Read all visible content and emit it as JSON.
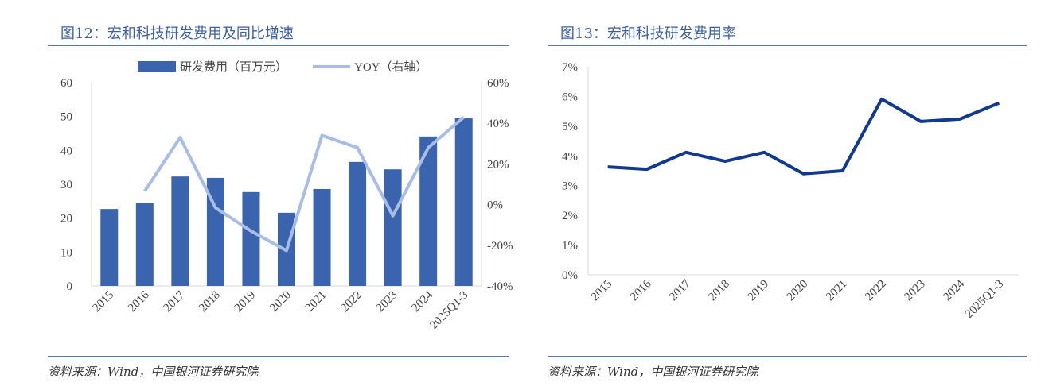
{
  "chart_data": [
    {
      "type": "bar+line",
      "title": "图12：宏和科技研发费用及同比增速",
      "categories": [
        "2015",
        "2016",
        "2017",
        "2018",
        "2019",
        "2020",
        "2021",
        "2022",
        "2023",
        "2024",
        "2025Q1-3"
      ],
      "series": [
        {
          "name": "研发费用（百万元）",
          "type": "bar",
          "axis": "left",
          "color": "#3a64ae",
          "values": [
            22.7,
            24.4,
            32.3,
            31.9,
            27.7,
            21.6,
            28.6,
            36.6,
            34.4,
            44.1,
            49.5
          ]
        },
        {
          "name": "YOY（右轴）",
          "type": "line",
          "axis": "right",
          "color": "#a8bde6",
          "values": [
            null,
            6.6,
            33,
            -1.6,
            -13,
            -22.6,
            34,
            28,
            -5.5,
            28,
            43
          ]
        }
      ],
      "ylim": [
        0,
        60
      ],
      "yticks": [
        "0",
        "10",
        "20",
        "30",
        "40",
        "50",
        "60"
      ],
      "y2lim": [
        -40,
        60
      ],
      "y2ticks": [
        "-40%",
        "-20%",
        "0%",
        "20%",
        "40%",
        "60%"
      ],
      "legend": "top",
      "source": "资料来源：Wind，中国银河证券研究院"
    },
    {
      "type": "line",
      "title": "图13：宏和科技研发费用率",
      "categories": [
        "2015",
        "2016",
        "2017",
        "2018",
        "2019",
        "2020",
        "2021",
        "2022",
        "2023",
        "2024",
        "2025Q1-3"
      ],
      "series": [
        {
          "name": "研发费用率",
          "color": "#0f3a8f",
          "values": [
            3.63,
            3.55,
            4.12,
            3.82,
            4.12,
            3.4,
            3.5,
            5.91,
            5.16,
            5.24,
            5.78
          ]
        }
      ],
      "ylim": [
        0,
        7
      ],
      "yticks": [
        "0%",
        "1%",
        "2%",
        "3%",
        "4%",
        "5%",
        "6%",
        "7%"
      ],
      "source": "资料来源：Wind，中国银河证券研究院"
    }
  ]
}
